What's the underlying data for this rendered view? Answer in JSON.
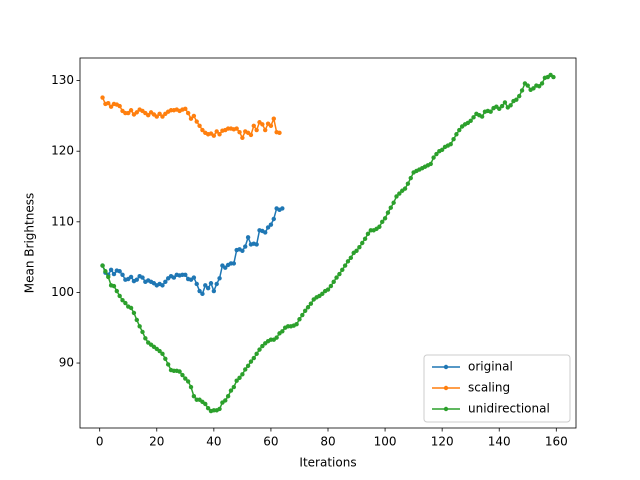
{
  "chart_data": {
    "type": "line",
    "xlabel": "Iterations",
    "ylabel": "Mean Brightness",
    "xlim": [
      -6.9,
      166.9
    ],
    "ylim": [
      80.8,
      133.2
    ],
    "xticks": [
      0,
      20,
      40,
      60,
      80,
      100,
      120,
      140,
      160
    ],
    "yticks": [
      90,
      100,
      110,
      120,
      130
    ],
    "legend": "lower right",
    "series": [
      {
        "name": "original",
        "color": "#1f77b4",
        "x": [
          1,
          2,
          3,
          4,
          5,
          6,
          7,
          8,
          9,
          10,
          11,
          12,
          13,
          14,
          15,
          16,
          17,
          18,
          19,
          20,
          21,
          22,
          23,
          24,
          25,
          26,
          27,
          28,
          29,
          30,
          31,
          32,
          33,
          34,
          35,
          36,
          37,
          38,
          39,
          40,
          41,
          42,
          43,
          44,
          45,
          46,
          47,
          48,
          49,
          50,
          51,
          52,
          53,
          54,
          55,
          56,
          57,
          58,
          59,
          60,
          61,
          62,
          63,
          64
        ],
        "values": [
          103.8,
          102.8,
          102.5,
          103.2,
          102.6,
          103.1,
          103.0,
          102.5,
          101.8,
          101.9,
          102.2,
          101.6,
          101.8,
          102.3,
          102.1,
          101.5,
          101.7,
          101.5,
          101.3,
          101.0,
          101.2,
          101.0,
          101.5,
          102.0,
          102.3,
          102.1,
          102.5,
          102.4,
          102.5,
          102.5,
          101.9,
          101.8,
          102.1,
          101.2,
          100.2,
          99.8,
          101.0,
          100.6,
          101.3,
          100.2,
          101.2,
          102.0,
          103.8,
          103.5,
          103.9,
          104.1,
          104.1,
          106.0,
          106.1,
          105.9,
          106.5,
          107.8,
          106.8,
          106.9,
          106.8,
          108.8,
          108.7,
          108.5,
          109.2,
          109.6,
          110.4,
          111.9,
          111.7,
          111.9
        ]
      },
      {
        "name": "scaling",
        "color": "#ff7f0e",
        "x": [
          1,
          2,
          3,
          4,
          5,
          6,
          7,
          8,
          9,
          10,
          11,
          12,
          13,
          14,
          15,
          16,
          17,
          18,
          19,
          20,
          21,
          22,
          23,
          24,
          25,
          26,
          27,
          28,
          29,
          30,
          31,
          32,
          33,
          34,
          35,
          36,
          37,
          38,
          39,
          40,
          41,
          42,
          43,
          44,
          45,
          46,
          47,
          48,
          49,
          50,
          51,
          52,
          53,
          54,
          55,
          56,
          57,
          58,
          59,
          60,
          61,
          62,
          63
        ],
        "values": [
          127.6,
          126.7,
          126.8,
          126.3,
          126.7,
          126.6,
          126.4,
          125.7,
          125.4,
          125.4,
          125.8,
          125.2,
          125.5,
          125.9,
          125.7,
          125.4,
          125.1,
          125.5,
          125.2,
          124.9,
          125.3,
          124.9,
          125.3,
          125.6,
          125.8,
          125.8,
          125.9,
          125.7,
          125.9,
          126.0,
          125.4,
          124.6,
          125.0,
          124.2,
          123.6,
          123.0,
          122.6,
          122.4,
          122.5,
          122.2,
          122.8,
          122.4,
          122.9,
          123.0,
          123.2,
          123.2,
          123.1,
          123.2,
          122.7,
          121.9,
          122.8,
          122.6,
          122.3,
          123.6,
          123.0,
          124.1,
          123.8,
          123.0,
          123.9,
          123.6,
          124.6,
          122.7,
          122.6
        ]
      },
      {
        "name": "unidirectional",
        "color": "#2ca02c",
        "x": [
          1,
          2,
          3,
          4,
          5,
          6,
          7,
          8,
          9,
          10,
          11,
          12,
          13,
          14,
          15,
          16,
          17,
          18,
          19,
          20,
          21,
          22,
          23,
          24,
          25,
          26,
          27,
          28,
          29,
          30,
          31,
          32,
          33,
          34,
          35,
          36,
          37,
          38,
          39,
          40,
          41,
          42,
          43,
          44,
          45,
          46,
          47,
          48,
          49,
          50,
          51,
          52,
          53,
          54,
          55,
          56,
          57,
          58,
          59,
          60,
          61,
          62,
          63,
          64,
          65,
          66,
          67,
          68,
          69,
          70,
          71,
          72,
          73,
          74,
          75,
          76,
          77,
          78,
          79,
          80,
          81,
          82,
          83,
          84,
          85,
          86,
          87,
          88,
          89,
          90,
          91,
          92,
          93,
          94,
          95,
          96,
          97,
          98,
          99,
          100,
          101,
          102,
          103,
          104,
          105,
          106,
          107,
          108,
          109,
          110,
          111,
          112,
          113,
          114,
          115,
          116,
          117,
          118,
          119,
          120,
          121,
          122,
          123,
          124,
          125,
          126,
          127,
          128,
          129,
          130,
          131,
          132,
          133,
          134,
          135,
          136,
          137,
          138,
          139,
          140,
          141,
          142,
          143,
          144,
          145,
          146,
          147,
          148,
          149,
          150,
          151,
          152,
          153,
          154,
          155,
          156,
          157,
          158,
          159
        ],
        "values": [
          103.8,
          103.0,
          102.2,
          101.0,
          100.9,
          100.2,
          99.5,
          98.9,
          98.5,
          98.0,
          97.8,
          97.1,
          96.1,
          95.2,
          94.4,
          93.5,
          92.9,
          92.6,
          92.3,
          92.0,
          91.7,
          91.3,
          90.6,
          89.8,
          89.0,
          88.9,
          88.9,
          88.8,
          88.3,
          87.8,
          87.4,
          86.6,
          85.3,
          84.8,
          84.8,
          84.5,
          84.2,
          83.6,
          83.2,
          83.3,
          83.3,
          83.5,
          84.4,
          84.7,
          85.3,
          86.1,
          86.6,
          87.5,
          87.9,
          88.4,
          89.1,
          89.6,
          90.2,
          90.7,
          91.3,
          91.9,
          92.4,
          92.8,
          93.1,
          93.3,
          93.3,
          93.6,
          94.2,
          94.5,
          95.0,
          95.2,
          95.2,
          95.3,
          95.5,
          96.2,
          96.8,
          97.4,
          97.9,
          98.4,
          99.0,
          99.3,
          99.5,
          99.8,
          100.2,
          100.4,
          100.9,
          101.5,
          102.1,
          102.6,
          103.2,
          103.8,
          104.4,
          104.9,
          105.6,
          105.9,
          106.4,
          107.0,
          107.6,
          108.3,
          108.8,
          108.8,
          109.0,
          109.3,
          110.0,
          110.5,
          111.3,
          112.0,
          112.7,
          113.6,
          114.0,
          114.4,
          114.7,
          115.4,
          116.2,
          117.0,
          117.2,
          117.4,
          117.6,
          117.8,
          118.0,
          118.2,
          119.1,
          119.6,
          120.0,
          120.2,
          120.6,
          120.8,
          121.0,
          121.7,
          122.4,
          123.0,
          123.5,
          123.8,
          124.0,
          124.3,
          124.8,
          125.3,
          125.1,
          124.9,
          125.6,
          125.7,
          125.6,
          126.1,
          126.3,
          126.0,
          126.4,
          126.9,
          126.2,
          126.5,
          127.1,
          127.3,
          127.8,
          128.6,
          129.6,
          129.3,
          128.7,
          128.9,
          129.3,
          129.2,
          129.6,
          130.4,
          130.5,
          130.8,
          130.5
        ]
      }
    ]
  }
}
